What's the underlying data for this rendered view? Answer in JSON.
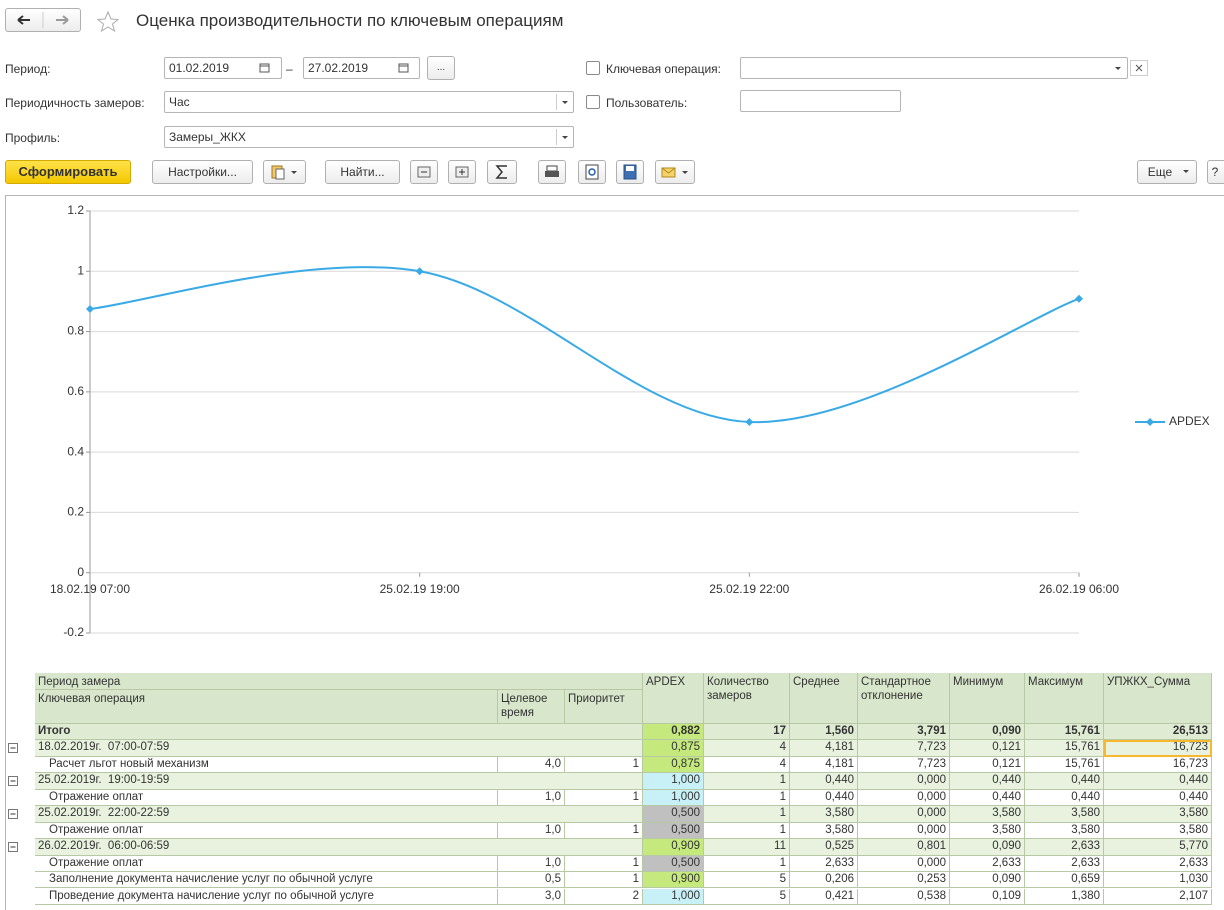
{
  "header": {
    "title": "Оценка производительности по ключевым операциям"
  },
  "form": {
    "period_label": "Период:",
    "date_from": "01.02.2019",
    "dash": "–",
    "date_to": "27.02.2019",
    "more": "...",
    "key_op_label": "Ключевая операция:",
    "frequency_label": "Периодичность замеров:",
    "frequency": "Час",
    "user_label": "Пользователь:",
    "profile_label": "Профиль:",
    "profile": "Замеры_ЖКХ"
  },
  "toolbar": {
    "generate": "Сформировать",
    "settings": "Настройки...",
    "find": "Найти...",
    "more": "Еще",
    "help": "?"
  },
  "chart_data": {
    "type": "line",
    "categories": [
      "18.02.19 07:00",
      "25.02.19 19:00",
      "25.02.19 22:00",
      "26.02.19 06:00"
    ],
    "series": [
      {
        "name": "APDEX",
        "color": "#3aaae6",
        "values": [
          0.875,
          1.0,
          0.5,
          0.909
        ]
      }
    ],
    "ylim": [
      -0.2,
      1.2
    ],
    "yticks": [
      -0.2,
      0,
      0.2,
      0.4,
      0.6,
      0.8,
      1,
      1.2
    ],
    "grid": true,
    "legend": "right"
  },
  "table": {
    "headers": {
      "period": "Период замера",
      "operation": "Ключевая операция",
      "target": "Целевое время",
      "priority": "Приоритет",
      "columns": [
        "APDEX",
        "Количество замеров",
        "Среднее",
        "Стандартное отклонение",
        "Минимум",
        "Максимум",
        "УПЖКХ_Сумма"
      ]
    },
    "rows": [
      {
        "kind": "total",
        "label": "Итого",
        "values": [
          "0,882",
          "17",
          "1,560",
          "3,791",
          "0,090",
          "15,761",
          "26,513"
        ],
        "apdex_color": "#c6e97e"
      },
      {
        "kind": "group",
        "label": "18.02.2019г.  07:00-07:59",
        "values": [
          "0,875",
          "4",
          "4,181",
          "7,723",
          "0,121",
          "15,761",
          "16,723"
        ],
        "apdex_color": "#c6e97e",
        "selected": true
      },
      {
        "kind": "item",
        "label": "Расчет льгот новый механизм",
        "target": "4,0",
        "priority": "1",
        "values": [
          "0,875",
          "4",
          "4,181",
          "7,723",
          "0,121",
          "15,761",
          "16,723"
        ],
        "apdex_color": "#c6e97e"
      },
      {
        "kind": "group",
        "label": "25.02.2019г.  19:00-19:59",
        "values": [
          "1,000",
          "1",
          "0,440",
          "0,000",
          "0,440",
          "0,440",
          "0,440"
        ],
        "apdex_color": "#c8f1f7"
      },
      {
        "kind": "item",
        "label": "Отражение оплат",
        "target": "1,0",
        "priority": "1",
        "values": [
          "1,000",
          "1",
          "0,440",
          "0,000",
          "0,440",
          "0,440",
          "0,440"
        ],
        "apdex_color": "#c8f1f7"
      },
      {
        "kind": "group",
        "label": "25.02.2019г.  22:00-22:59",
        "values": [
          "0,500",
          "1",
          "3,580",
          "0,000",
          "3,580",
          "3,580",
          "3,580"
        ],
        "apdex_color": "#c0c0c0"
      },
      {
        "kind": "item",
        "label": "Отражение оплат",
        "target": "1,0",
        "priority": "1",
        "values": [
          "0,500",
          "1",
          "3,580",
          "0,000",
          "3,580",
          "3,580",
          "3,580"
        ],
        "apdex_color": "#c0c0c0"
      },
      {
        "kind": "group",
        "label": "26.02.2019г.  06:00-06:59",
        "values": [
          "0,909",
          "11",
          "0,525",
          "0,801",
          "0,090",
          "2,633",
          "5,770"
        ],
        "apdex_color": "#c6e97e"
      },
      {
        "kind": "item",
        "label": "Отражение оплат",
        "target": "1,0",
        "priority": "1",
        "values": [
          "0,500",
          "1",
          "2,633",
          "0,000",
          "2,633",
          "2,633",
          "2,633"
        ],
        "apdex_color": "#c0c0c0"
      },
      {
        "kind": "item",
        "label": "Заполнение документа начисление услуг по обычной услуге",
        "target": "0,5",
        "priority": "1",
        "values": [
          "0,900",
          "5",
          "0,206",
          "0,253",
          "0,090",
          "0,659",
          "1,030"
        ],
        "apdex_color": "#c6e97e"
      },
      {
        "kind": "item",
        "label": "Проведение документа начисление услуг по обычной услуге",
        "target": "3,0",
        "priority": "2",
        "values": [
          "1,000",
          "5",
          "0,421",
          "0,538",
          "0,109",
          "1,380",
          "2,107"
        ],
        "apdex_color": "#c8f1f7"
      }
    ]
  }
}
